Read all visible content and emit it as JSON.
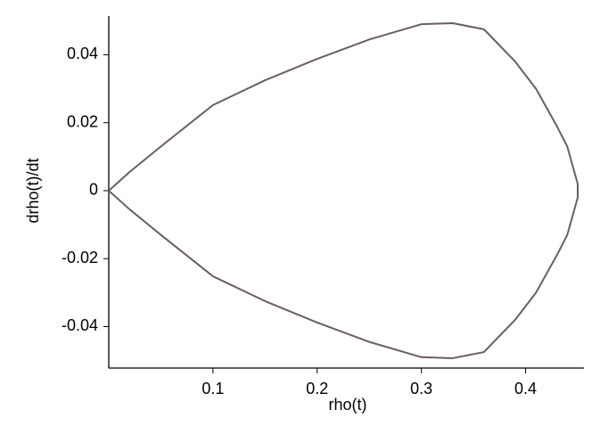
{
  "chart_data": {
    "type": "line",
    "x_label": "rho(t)",
    "y_label": "drho(t)/dt",
    "x": [
      0,
      0.02,
      0.05,
      0.1,
      0.15,
      0.2,
      0.25,
      0.3,
      0.33,
      0.36,
      0.39,
      0.41,
      0.43,
      0.44,
      0.45,
      0.45,
      0.44,
      0.43,
      0.41,
      0.39,
      0.36,
      0.33,
      0.3,
      0.25,
      0.2,
      0.15,
      0.1,
      0.05,
      0.02,
      0
    ],
    "series": [
      {
        "color": "#6b5e5e",
        "values": [
          0,
          0.0055,
          0.013,
          0.0252,
          0.0325,
          0.0388,
          0.0445,
          0.049,
          0.0493,
          0.0475,
          0.038,
          0.03,
          0.019,
          0.013,
          0.002,
          -0.002,
          -0.013,
          -0.019,
          -0.03,
          -0.038,
          -0.0475,
          -0.0493,
          -0.049,
          -0.0445,
          -0.0388,
          -0.0325,
          -0.0252,
          -0.013,
          -0.0055,
          0
        ]
      }
    ],
    "xlim": [
      0,
      0.456
    ],
    "ylim": [
      -0.0522,
      0.0514
    ],
    "xticks": [
      0.1,
      0.2,
      0.3,
      0.4
    ],
    "yticks": [
      -0.04,
      -0.02,
      0,
      0.02,
      0.04
    ]
  }
}
